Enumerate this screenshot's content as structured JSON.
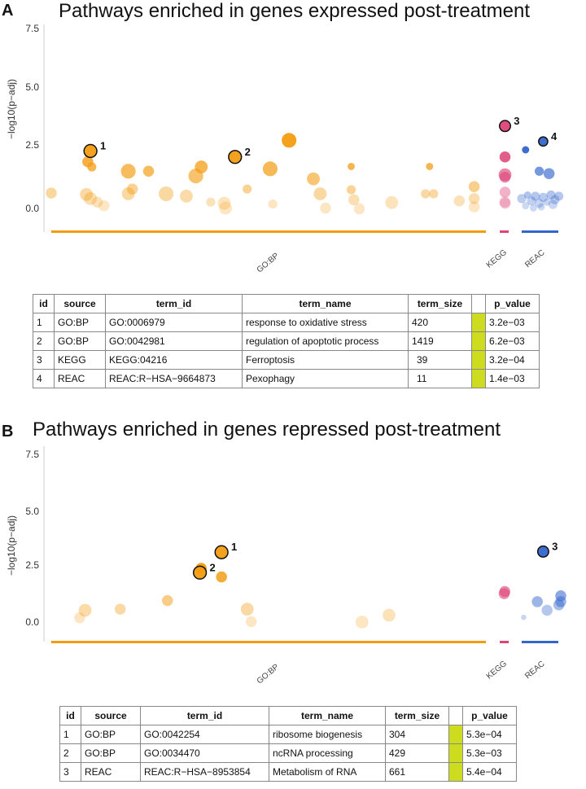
{
  "panels": [
    {
      "letter": "A",
      "title": "Pathways enriched in genes expressed post-treatment",
      "ylabel": "−log10(p−adj)",
      "yticks": [
        "7.5",
        "5.0",
        "2.5",
        "0.0"
      ],
      "ytick_values": [
        7.5,
        5.0,
        2.5,
        0.0
      ],
      "sources": [
        "GO:BP",
        "KEGG",
        "REAC"
      ],
      "highlight_labels": [
        "1",
        "2",
        "3",
        "4"
      ],
      "table": {
        "headers": [
          "id",
          "source",
          "term_id",
          "term_name",
          "term_size",
          "",
          "p_value"
        ],
        "rows": [
          [
            "1",
            "GO:BP",
            "GO:0006979",
            "response to oxidative stress",
            "420",
            "",
            "3.2e−03"
          ],
          [
            "2",
            "GO:BP",
            "GO:0042981",
            "regulation of apoptotic process",
            "1419",
            "",
            "6.2e−03"
          ],
          [
            "3",
            "KEGG",
            "KEGG:04216",
            "Ferroptosis",
            "39",
            "",
            "3.2e−04"
          ],
          [
            "4",
            "REAC",
            "REAC:R−HSA−9664873",
            "Pexophagy",
            "11",
            "",
            "1.4e−03"
          ]
        ]
      }
    },
    {
      "letter": "B",
      "title": "Pathways enriched in genes repressed post-treatment",
      "ylabel": "−log10(p−adj)",
      "yticks": [
        "7.5",
        "5.0",
        "2.5",
        "0.0"
      ],
      "ytick_values": [
        7.5,
        5.0,
        2.5,
        0.0
      ],
      "sources": [
        "GO:BP",
        "KEGG",
        "REAC"
      ],
      "highlight_labels": [
        "1",
        "2",
        "3"
      ],
      "table": {
        "headers": [
          "id",
          "source",
          "term_id",
          "term_name",
          "term_size",
          "",
          "p_value"
        ],
        "rows": [
          [
            "1",
            "GO:BP",
            "GO:0042254",
            "ribosome biogenesis",
            "304",
            "",
            "5.3e−04"
          ],
          [
            "2",
            "GO:BP",
            "GO:0034470",
            "ncRNA processing",
            "429",
            "",
            "5.3e−03"
          ],
          [
            "3",
            "REAC",
            "REAC:R−HSA−8953854",
            "Metabolism of RNA",
            "661",
            "",
            "5.4e−04"
          ]
        ]
      }
    }
  ],
  "chart_data": [
    {
      "type": "scatter",
      "title": "Pathways enriched in genes expressed post-treatment",
      "xlabel": "",
      "ylabel": "-log10(p-adj)",
      "ylim": [
        -1,
        7.8
      ],
      "x_categories": [
        "GO:BP",
        "KEGG",
        "REAC"
      ],
      "source_colors": {
        "GO:BP": "#f39c12",
        "KEGG": "#dd4477",
        "REAC": "#3366cc"
      },
      "points": [
        {
          "x": 0.5,
          "y": 0.68,
          "s": 5,
          "src": "GO:BP"
        },
        {
          "x": 3.1,
          "y": 0.62,
          "s": 6,
          "src": "GO:BP"
        },
        {
          "x": 3.4,
          "y": 0.45,
          "s": 6,
          "src": "GO:BP"
        },
        {
          "x": 3.9,
          "y": 0.3,
          "s": 5,
          "src": "GO:BP"
        },
        {
          "x": 4.4,
          "y": 0.15,
          "s": 5,
          "src": "GO:BP"
        },
        {
          "x": 3.2,
          "y": 2.0,
          "s": 5,
          "src": "GO:BP"
        },
        {
          "x": 3.5,
          "y": 1.78,
          "s": 4,
          "src": "GO:BP"
        },
        {
          "x": 3.4,
          "y": 2.45,
          "s": 6,
          "src": "GO:BP",
          "hl": "1"
        },
        {
          "x": 6.2,
          "y": 0.65,
          "s": 6,
          "src": "GO:BP"
        },
        {
          "x": 6.5,
          "y": 0.85,
          "s": 5,
          "src": "GO:BP"
        },
        {
          "x": 6.2,
          "y": 1.6,
          "s": 7,
          "src": "GO:BP"
        },
        {
          "x": 7.7,
          "y": 1.6,
          "s": 5,
          "src": "GO:BP"
        },
        {
          "x": 9.0,
          "y": 0.65,
          "s": 7,
          "src": "GO:BP"
        },
        {
          "x": 10.5,
          "y": 0.55,
          "s": 6,
          "src": "GO:BP"
        },
        {
          "x": 11.2,
          "y": 1.4,
          "s": 7,
          "src": "GO:BP"
        },
        {
          "x": 11.6,
          "y": 1.78,
          "s": 6,
          "src": "GO:BP"
        },
        {
          "x": 12.3,
          "y": 0.3,
          "s": 4,
          "src": "GO:BP"
        },
        {
          "x": 13.3,
          "y": 0.25,
          "s": 6,
          "src": "GO:BP"
        },
        {
          "x": 13.4,
          "y": 0.05,
          "s": 6,
          "src": "GO:BP"
        },
        {
          "x": 14.1,
          "y": 2.2,
          "s": 6,
          "src": "GO:BP",
          "hl": "2"
        },
        {
          "x": 15.0,
          "y": 0.85,
          "s": 4,
          "src": "GO:BP"
        },
        {
          "x": 16.7,
          "y": 1.7,
          "s": 7,
          "src": "GO:BP"
        },
        {
          "x": 16.9,
          "y": 0.22,
          "s": 4,
          "src": "GO:BP"
        },
        {
          "x": 18.1,
          "y": 2.9,
          "s": 7,
          "src": "GO:BP"
        },
        {
          "x": 19.9,
          "y": 1.28,
          "s": 6,
          "src": "GO:BP"
        },
        {
          "x": 20.4,
          "y": 0.65,
          "s": 6,
          "src": "GO:BP"
        },
        {
          "x": 20.8,
          "y": 0.05,
          "s": 5,
          "src": "GO:BP"
        },
        {
          "x": 22.7,
          "y": 1.8,
          "s": 3,
          "src": "GO:BP"
        },
        {
          "x": 22.7,
          "y": 0.82,
          "s": 4,
          "src": "GO:BP"
        },
        {
          "x": 22.9,
          "y": 0.4,
          "s": 5,
          "src": "GO:BP"
        },
        {
          "x": 23.3,
          "y": 0.02,
          "s": 5,
          "src": "GO:BP"
        },
        {
          "x": 25.7,
          "y": 0.28,
          "s": 6,
          "src": "GO:BP"
        },
        {
          "x": 28.2,
          "y": 0.65,
          "s": 4,
          "src": "GO:BP"
        },
        {
          "x": 28.5,
          "y": 1.8,
          "s": 3,
          "src": "GO:BP"
        },
        {
          "x": 28.8,
          "y": 0.65,
          "s": 4,
          "src": "GO:BP"
        },
        {
          "x": 30.7,
          "y": 0.35,
          "s": 5,
          "src": "GO:BP"
        },
        {
          "x": 31.8,
          "y": 0.95,
          "s": 5,
          "src": "GO:BP"
        },
        {
          "x": 31.8,
          "y": 0.45,
          "s": 5,
          "src": "GO:BP"
        },
        {
          "x": 31.8,
          "y": 0.1,
          "s": 5,
          "src": "GO:BP"
        },
        {
          "x": 1,
          "y": 3.5,
          "s": 5,
          "src": "KEGG",
          "hl": "3"
        },
        {
          "x": 1,
          "y": 2.2,
          "s": 5,
          "src": "KEGG"
        },
        {
          "x": 1,
          "y": 1.45,
          "s": 6,
          "src": "KEGG"
        },
        {
          "x": 1,
          "y": 1.35,
          "s": 5,
          "src": "KEGG"
        },
        {
          "x": 1,
          "y": 0.72,
          "s": 5,
          "src": "KEGG"
        },
        {
          "x": 0.7,
          "y": 0.3,
          "s": 5,
          "src": "KEGG"
        },
        {
          "x": 1.3,
          "y": 0.25,
          "s": 5,
          "src": "KEGG"
        },
        {
          "x": 0.2,
          "y": 2.5,
          "s": 3,
          "src": "REAC"
        },
        {
          "x": 1.1,
          "y": 2.85,
          "s": 4,
          "src": "REAC",
          "hl": "4"
        },
        {
          "x": 0.9,
          "y": 1.6,
          "s": 4,
          "src": "REAC"
        },
        {
          "x": 1.4,
          "y": 1.5,
          "s": 5,
          "src": "REAC"
        },
        {
          "x": 0.0,
          "y": 0.45,
          "s": 4,
          "src": "REAC"
        },
        {
          "x": 0.3,
          "y": 0.6,
          "s": 3,
          "src": "REAC"
        },
        {
          "x": 0.5,
          "y": 0.35,
          "s": 4,
          "src": "REAC"
        },
        {
          "x": 0.7,
          "y": 0.55,
          "s": 4,
          "src": "REAC"
        },
        {
          "x": 0.9,
          "y": 0.25,
          "s": 4,
          "src": "REAC"
        },
        {
          "x": 1.1,
          "y": 0.5,
          "s": 4,
          "src": "REAC"
        },
        {
          "x": 1.3,
          "y": 0.3,
          "s": 3,
          "src": "REAC"
        },
        {
          "x": 1.5,
          "y": 0.6,
          "s": 4,
          "src": "REAC"
        },
        {
          "x": 1.7,
          "y": 0.4,
          "s": 4,
          "src": "REAC"
        },
        {
          "x": 1.9,
          "y": 0.55,
          "s": 4,
          "src": "REAC"
        },
        {
          "x": 0.2,
          "y": 0.15,
          "s": 3,
          "src": "REAC"
        },
        {
          "x": 0.6,
          "y": 0.05,
          "s": 3,
          "src": "REAC"
        },
        {
          "x": 1.0,
          "y": 0.1,
          "s": 3,
          "src": "REAC"
        },
        {
          "x": 1.6,
          "y": 0.2,
          "s": 4,
          "src": "REAC"
        }
      ]
    },
    {
      "type": "scatter",
      "title": "Pathways enriched in genes repressed post-treatment",
      "xlabel": "",
      "ylabel": "-log10(p-adj)",
      "ylim": [
        -1,
        7.8
      ],
      "x_categories": [
        "GO:BP",
        "KEGG",
        "REAC"
      ],
      "source_colors": {
        "GO:BP": "#f39c12",
        "KEGG": "#dd4477",
        "REAC": "#3366cc"
      },
      "points": [
        {
          "x": 2.6,
          "y": 0.2,
          "s": 5,
          "src": "GO:BP"
        },
        {
          "x": 3.0,
          "y": 0.55,
          "s": 6,
          "src": "GO:BP"
        },
        {
          "x": 5.6,
          "y": 0.6,
          "s": 5,
          "src": "GO:BP"
        },
        {
          "x": 9.1,
          "y": 1.0,
          "s": 5,
          "src": "GO:BP"
        },
        {
          "x": 11.6,
          "y": 2.5,
          "s": 5,
          "src": "GO:BP"
        },
        {
          "x": 11.5,
          "y": 2.3,
          "s": 6,
          "src": "GO:BP",
          "hl": "2"
        },
        {
          "x": 13.1,
          "y": 2.1,
          "s": 5,
          "src": "GO:BP"
        },
        {
          "x": 13.1,
          "y": 3.25,
          "s": 6,
          "src": "GO:BP",
          "hl": "1"
        },
        {
          "x": 15.0,
          "y": 0.6,
          "s": 6,
          "src": "GO:BP"
        },
        {
          "x": 15.3,
          "y": 0.02,
          "s": 5,
          "src": "GO:BP"
        },
        {
          "x": 23.5,
          "y": 0.0,
          "s": 6,
          "src": "GO:BP"
        },
        {
          "x": 25.5,
          "y": 0.32,
          "s": 6,
          "src": "GO:BP"
        },
        {
          "x": 0.8,
          "y": 1.32,
          "s": 5,
          "src": "KEGG"
        },
        {
          "x": 1.1,
          "y": 1.42,
          "s": 5,
          "src": "KEGG"
        },
        {
          "x": 0.1,
          "y": 0.22,
          "s": 2,
          "src": "REAC"
        },
        {
          "x": 1.1,
          "y": 3.28,
          "s": 5,
          "src": "REAC",
          "hl": "3"
        },
        {
          "x": 0.8,
          "y": 0.95,
          "s": 5,
          "src": "REAC"
        },
        {
          "x": 1.3,
          "y": 0.55,
          "s": 5,
          "src": "REAC"
        },
        {
          "x": 2.0,
          "y": 1.22,
          "s": 5,
          "src": "REAC"
        },
        {
          "x": 2.0,
          "y": 0.95,
          "s": 5,
          "src": "REAC"
        },
        {
          "x": 1.9,
          "y": 0.8,
          "s": 5,
          "src": "REAC"
        }
      ]
    }
  ]
}
